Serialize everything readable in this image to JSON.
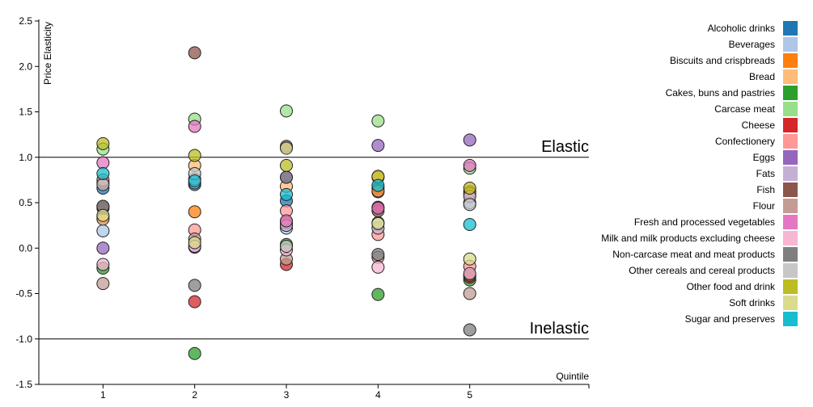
{
  "chart_data": {
    "type": "scatter",
    "ylabel": "Price Elasticity",
    "xlabel": "Quintile",
    "x_ticks": [
      "1",
      "2",
      "3",
      "4",
      "5"
    ],
    "y_ticks": [
      "-1.5",
      "-1.0",
      "-0.5",
      "0.0",
      "0.5",
      "1.0",
      "1.5",
      "2.0",
      "2.5"
    ],
    "xlim": [
      0.3,
      6.3
    ],
    "ylim": [
      -1.5,
      2.5
    ],
    "reference_lines": [
      {
        "label": "Elastic",
        "y": 1.0
      },
      {
        "label": "Inelastic",
        "y": -1.0
      }
    ],
    "grid": false,
    "legend_position": "right",
    "series": [
      {
        "name": "Alcoholic drinks",
        "color": "#1f77b4",
        "points": [
          [
            1,
            0.66
          ],
          [
            2,
            0.7
          ],
          [
            3,
            0.52
          ],
          [
            4,
            0.66
          ],
          [
            5,
            null
          ]
        ]
      },
      {
        "name": "Beverages",
        "color": "#aec7e8",
        "points": [
          [
            1,
            0.19
          ],
          [
            2,
            0.72
          ],
          [
            3,
            0.22
          ],
          [
            4,
            0.62
          ],
          [
            5,
            0.5
          ]
        ]
      },
      {
        "name": "Biscuits and crispbreads",
        "color": "#ff7f0e",
        "points": [
          [
            1,
            0.34
          ],
          [
            2,
            0.4
          ],
          [
            3,
            0.28
          ],
          [
            4,
            0.63
          ],
          [
            5,
            0.62
          ]
        ]
      },
      {
        "name": "Bread",
        "color": "#ffbb78",
        "points": [
          [
            1,
            0.32
          ],
          [
            2,
            0.91
          ],
          [
            3,
            0.68
          ],
          [
            4,
            0.78
          ],
          [
            5,
            0.6
          ]
        ]
      },
      {
        "name": "Cakes, buns and pastries",
        "color": "#2ca02c",
        "points": [
          [
            1,
            -0.22
          ],
          [
            2,
            -1.16
          ],
          [
            3,
            0.04
          ],
          [
            4,
            -0.51
          ],
          [
            5,
            -0.35
          ]
        ]
      },
      {
        "name": "Carcase meat",
        "color": "#98df8a",
        "points": [
          [
            1,
            1.09
          ],
          [
            2,
            1.42
          ],
          [
            3,
            1.51
          ],
          [
            4,
            1.4
          ],
          [
            5,
            0.88
          ]
        ]
      },
      {
        "name": "Cheese",
        "color": "#d62728",
        "points": [
          [
            1,
            0.72
          ],
          [
            2,
            -0.59
          ],
          [
            3,
            -0.18
          ],
          [
            4,
            0.45
          ],
          [
            5,
            -0.32
          ]
        ]
      },
      {
        "name": "Confectionery",
        "color": "#ff9896",
        "points": [
          [
            1,
            0.75
          ],
          [
            2,
            0.2
          ],
          [
            3,
            0.41
          ],
          [
            4,
            0.15
          ],
          [
            5,
            -0.2
          ]
        ]
      },
      {
        "name": "Eggs",
        "color": "#9467bd",
        "points": [
          [
            1,
            0.0
          ],
          [
            2,
            0.01
          ],
          [
            3,
            0.78
          ],
          [
            4,
            1.13
          ],
          [
            5,
            1.19
          ]
        ]
      },
      {
        "name": "Fats",
        "color": "#c5b0d5",
        "points": [
          [
            1,
            0.44
          ],
          [
            2,
            0.76
          ],
          [
            3,
            0.25
          ],
          [
            4,
            0.22
          ],
          [
            5,
            0.57
          ]
        ]
      },
      {
        "name": "Fish",
        "color": "#8c564b",
        "points": [
          [
            1,
            0.46
          ],
          [
            2,
            2.15
          ],
          [
            3,
            1.12
          ],
          [
            4,
            0.41
          ],
          [
            5,
            -0.3
          ]
        ]
      },
      {
        "name": "Flour",
        "color": "#c49c94",
        "points": [
          [
            1,
            -0.39
          ],
          [
            2,
            0.1
          ],
          [
            3,
            -0.12
          ],
          [
            4,
            -0.1
          ],
          [
            5,
            -0.5
          ]
        ]
      },
      {
        "name": "Fresh and processed vegetables",
        "color": "#e377c2",
        "points": [
          [
            1,
            0.94
          ],
          [
            2,
            1.34
          ],
          [
            3,
            0.3
          ],
          [
            4,
            0.44
          ],
          [
            5,
            0.91
          ]
        ]
      },
      {
        "name": "Milk and milk products excluding cheese",
        "color": "#f7b6d2",
        "points": [
          [
            1,
            -0.18
          ],
          [
            2,
            0.02
          ],
          [
            3,
            -0.02
          ],
          [
            4,
            -0.21
          ],
          [
            5,
            -0.28
          ]
        ]
      },
      {
        "name": "Non-carcase meat and meat products",
        "color": "#7f7f7f",
        "points": [
          [
            1,
            0.46
          ],
          [
            2,
            -0.41
          ],
          [
            3,
            0.78
          ],
          [
            4,
            -0.07
          ],
          [
            5,
            -0.9
          ]
        ]
      },
      {
        "name": "Other cereals and cereal products",
        "color": "#c7c7c7",
        "points": [
          [
            1,
            0.7
          ],
          [
            2,
            0.82
          ],
          [
            3,
            0.02
          ],
          [
            4,
            0.28
          ],
          [
            5,
            0.48
          ]
        ]
      },
      {
        "name": "Other food and drink",
        "color": "#bcbd22",
        "points": [
          [
            1,
            1.15
          ],
          [
            2,
            1.02
          ],
          [
            3,
            0.91
          ],
          [
            4,
            0.79
          ],
          [
            5,
            0.66
          ]
        ]
      },
      {
        "name": "Soft drinks",
        "color": "#dbdb8d",
        "points": [
          [
            1,
            0.36
          ],
          [
            2,
            0.06
          ],
          [
            3,
            1.1
          ],
          [
            4,
            0.27
          ],
          [
            5,
            -0.12
          ]
        ]
      },
      {
        "name": "Sugar and preserves",
        "color": "#17becf",
        "points": [
          [
            1,
            0.82
          ],
          [
            2,
            0.74
          ],
          [
            3,
            0.59
          ],
          [
            4,
            0.69
          ],
          [
            5,
            0.26
          ]
        ]
      }
    ]
  }
}
